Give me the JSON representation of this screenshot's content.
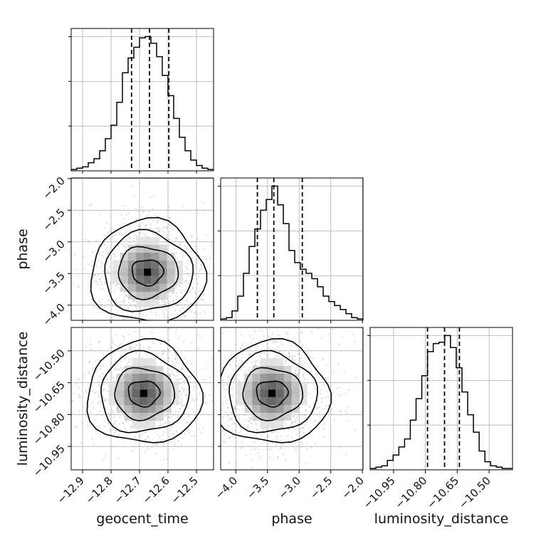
{
  "chart_data": {
    "type": "corner",
    "parameters": [
      "geocent_time",
      "phase",
      "luminosity_distance"
    ],
    "axis_labels": {
      "x": [
        "geocent_time",
        "phase",
        "luminosity_distance"
      ],
      "y": [
        "",
        "phase",
        "luminosity_distance"
      ]
    },
    "ranges": [
      [
        -12.94,
        -12.44
      ],
      [
        -4.24,
        -1.99
      ],
      [
        -11.06,
        -10.39
      ]
    ],
    "ticks": {
      "geocent_time": [
        -12.9,
        -12.8,
        -12.7,
        -12.6,
        -12.5
      ],
      "phase": [
        -4.0,
        -3.5,
        -3.0,
        -2.5,
        -2.0
      ],
      "luminosity_distance": [
        -10.95,
        -10.8,
        -10.65,
        -10.5
      ]
    },
    "tick_labels": {
      "geocent_time": [
        "−12.9",
        "−12.8",
        "−12.7",
        "−12.6",
        "−12.5"
      ],
      "phase": [
        "−4.0",
        "−3.5",
        "−3.0",
        "−2.5",
        "−2.0"
      ],
      "luminosity_distance": [
        "−10.95",
        "−10.80",
        "−10.65",
        "−10.50"
      ]
    },
    "quantiles": {
      "geocent_time": [
        -12.728,
        -12.665,
        -12.597
      ],
      "phase": [
        -3.66,
        -3.4,
        -2.95
      ],
      "luminosity_distance": [
        -10.79,
        -10.71,
        -10.64
      ]
    },
    "histograms": {
      "geocent_time": {
        "edges": [
          -12.94,
          -12.92,
          -12.9,
          -12.88,
          -12.86,
          -12.84,
          -12.82,
          -12.8,
          -12.78,
          -12.76,
          -12.74,
          -12.72,
          -12.7,
          -12.68,
          -12.66,
          -12.64,
          -12.62,
          -12.6,
          -12.58,
          -12.56,
          -12.54,
          -12.52,
          -12.5,
          -12.48,
          -12.46,
          -12.44
        ],
        "counts": [
          1,
          2,
          3,
          6,
          9,
          15,
          24,
          34,
          51,
          73,
          84,
          92,
          99,
          100,
          95,
          85,
          71,
          56,
          39,
          25,
          15,
          8,
          4,
          2,
          1
        ]
      },
      "phase": {
        "edges": [
          -4.24,
          -4.15,
          -4.06,
          -3.97,
          -3.88,
          -3.79,
          -3.7,
          -3.61,
          -3.52,
          -3.43,
          -3.34,
          -3.25,
          -3.16,
          -3.07,
          -2.98,
          -2.89,
          -2.8,
          -2.71,
          -2.62,
          -2.53,
          -2.44,
          -2.35,
          -2.26,
          -2.17,
          -2.08,
          -1.99
        ],
        "counts": [
          1,
          2,
          7,
          18,
          35,
          55,
          68,
          82,
          90,
          100,
          86,
          72,
          52,
          43,
          38,
          35,
          31,
          25,
          18,
          14,
          11,
          8,
          5,
          2,
          1
        ]
      },
      "luminosity_distance": {
        "edges": [
          -11.06,
          -11.033,
          -11.006,
          -10.979,
          -10.952,
          -10.925,
          -10.898,
          -10.871,
          -10.844,
          -10.817,
          -10.79,
          -10.763,
          -10.736,
          -10.709,
          -10.682,
          -10.655,
          -10.628,
          -10.601,
          -10.574,
          -10.547,
          -10.52,
          -10.493,
          -10.466,
          -10.439,
          -10.412,
          -10.39
        ],
        "counts": [
          1,
          2,
          3,
          7,
          11,
          17,
          23,
          37,
          53,
          70,
          88,
          94,
          95,
          100,
          91,
          76,
          58,
          41,
          28,
          14,
          6,
          3,
          2,
          1,
          1
        ]
      }
    },
    "density_2d": {
      "phase_vs_geocent_time": {
        "peak": [
          -12.672,
          -3.48
        ],
        "contour_levels": [
          0.12,
          0.39,
          0.68,
          0.86
        ]
      },
      "luminosity_distance_vs_geocent_time": {
        "peak": [
          -12.685,
          -10.7
        ],
        "contour_levels": [
          0.12,
          0.39,
          0.68,
          0.86
        ]
      },
      "luminosity_distance_vs_phase": {
        "peak": [
          -3.43,
          -10.7
        ],
        "contour_levels": [
          0.12,
          0.39,
          0.68,
          0.86
        ]
      }
    },
    "grid": true,
    "colors": {
      "line": "#000000",
      "grid": "#b0b0b0",
      "points": "#999999",
      "quantile": "#000000"
    }
  }
}
